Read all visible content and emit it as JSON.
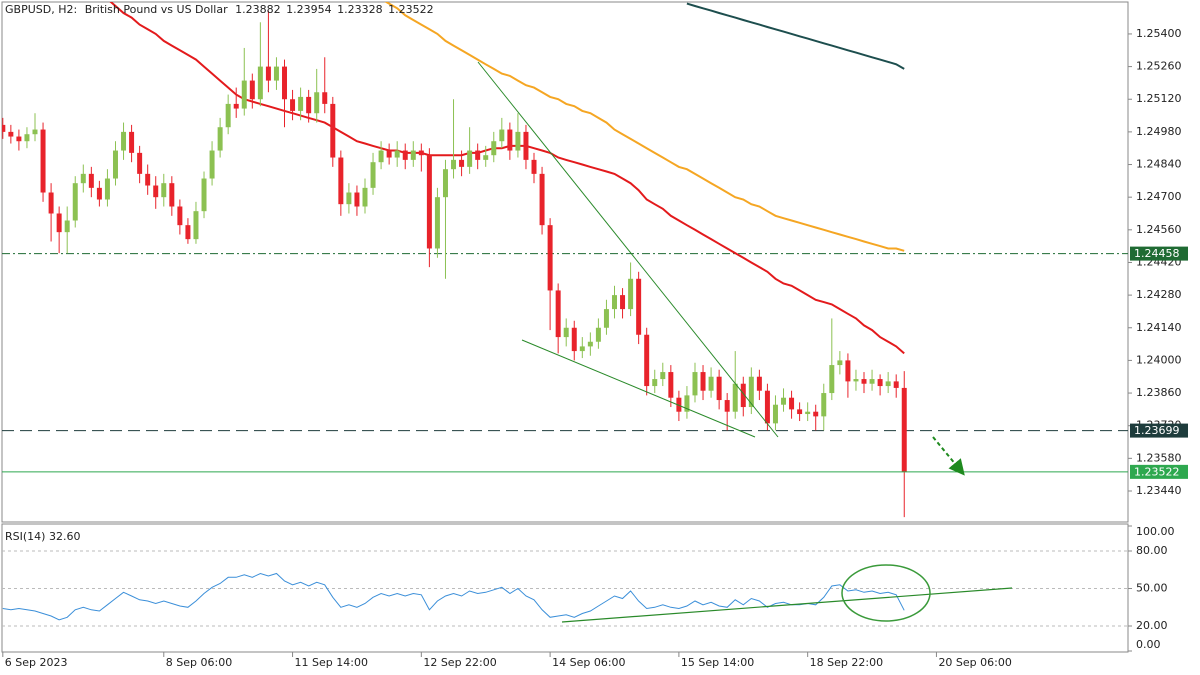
{
  "chart_data": {
    "type": "candlestick",
    "symbol": "GBPUSD, H2:",
    "description": "British Pound vs US Dollar",
    "xlim": [
      -0.1,
      139.8
    ],
    "xticks": [
      {
        "value": 0,
        "label": "6 Sep 2023"
      },
      {
        "value": 20,
        "label": "8 Sep 06:00"
      },
      {
        "value": 36,
        "label": "11 Sep 14:00"
      },
      {
        "value": 52,
        "label": "12 Sep 22:00"
      },
      {
        "value": 68,
        "label": "14 Sep 06:00"
      },
      {
        "value": 84,
        "label": "15 Sep 14:00"
      },
      {
        "value": 100,
        "label": "18 Sep 22:00"
      },
      {
        "value": 116,
        "label": "20 Sep 06:00"
      }
    ],
    "ylim": [
      1.23307,
      1.25537
    ],
    "yticks": [
      {
        "value": 1.254,
        "label": "1.25400"
      },
      {
        "value": 1.2526,
        "label": "1.25260"
      },
      {
        "value": 1.2512,
        "label": "1.25120"
      },
      {
        "value": 1.2498,
        "label": "1.24980"
      },
      {
        "value": 1.2484,
        "label": "1.24840"
      },
      {
        "value": 1.247,
        "label": "1.24700"
      },
      {
        "value": 1.2456,
        "label": "1.24560"
      },
      {
        "value": 1.2442,
        "label": "1.24420"
      },
      {
        "value": 1.2428,
        "label": "1.24280"
      },
      {
        "value": 1.2414,
        "label": "1.24140"
      },
      {
        "value": 1.24,
        "label": "1.24000"
      },
      {
        "value": 1.2386,
        "label": "1.23860"
      },
      {
        "value": 1.2372,
        "label": "1.23720"
      },
      {
        "value": 1.2358,
        "label": "1.23580"
      },
      {
        "value": 1.2344,
        "label": "1.23440"
      }
    ],
    "up_color": "#8cc152",
    "down_color": "#e8232b",
    "open": [
      1.2501,
      1.2498,
      1.2496,
      1.2494,
      1.2497,
      1.2499,
      1.2472,
      1.2463,
      1.2455,
      1.246,
      1.2476,
      1.248,
      1.2474,
      1.2469,
      1.2478,
      1.249,
      1.2498,
      1.2489,
      1.248,
      1.2475,
      1.247,
      1.2476,
      1.2466,
      1.2458,
      1.2452,
      1.2464,
      1.2478,
      1.249,
      1.25,
      1.251,
      1.2508,
      1.252,
      1.2512,
      1.2526,
      1.252,
      1.2526,
      1.2512,
      1.2507,
      1.2513,
      1.2506,
      1.2515,
      1.251,
      1.2487,
      1.2467,
      1.2472,
      1.2466,
      1.2474,
      1.2485,
      1.249,
      1.2487,
      1.249,
      1.2486,
      1.249,
      1.2488,
      1.2448,
      1.247,
      1.2482,
      1.2486,
      1.2483,
      1.249,
      1.2486,
      1.2488,
      1.2494,
      1.2499,
      1.249,
      1.2498,
      1.2486,
      1.248,
      1.2458,
      1.243,
      1.241,
      1.2414,
      1.2404,
      1.2406,
      1.2408,
      1.2414,
      1.2422,
      1.2428,
      1.2422,
      1.2435,
      1.2411,
      1.2389,
      1.2392,
      1.2395,
      1.2384,
      1.2378,
      1.2385,
      1.2395,
      1.2387,
      1.2393,
      1.2383,
      1.2378,
      1.239,
      1.238,
      1.2393,
      1.2387,
      1.2373,
      1.2381,
      1.2384,
      1.2379,
      1.2377,
      1.2378,
      1.2376,
      1.2386,
      1.2398,
      1.24,
      1.2391,
      1.2392,
      1.239,
      1.2392,
      1.2389,
      1.2391,
      1.23882
    ],
    "high": [
      1.2504,
      1.2501,
      1.2499,
      1.25,
      1.2506,
      1.2502,
      1.2476,
      1.2466,
      1.2466,
      1.2479,
      1.2484,
      1.2483,
      1.2477,
      1.2482,
      1.2494,
      1.2502,
      1.2501,
      1.2492,
      1.2484,
      1.2479,
      1.248,
      1.2479,
      1.2469,
      1.2461,
      1.2468,
      1.2481,
      1.2494,
      1.2504,
      1.2514,
      1.2517,
      1.2534,
      1.2523,
      1.2545,
      1.255,
      1.253,
      1.2529,
      1.2516,
      1.2517,
      1.2516,
      1.2525,
      1.253,
      1.2513,
      1.249,
      1.2476,
      1.2475,
      1.2478,
      1.2489,
      1.2494,
      1.2493,
      1.2494,
      1.2493,
      1.2494,
      1.2493,
      1.2491,
      1.2474,
      1.2486,
      1.2512,
      1.249,
      1.25,
      1.2493,
      1.2492,
      1.2498,
      1.2504,
      1.2502,
      1.2506,
      1.2501,
      1.2489,
      1.2483,
      1.2461,
      1.2433,
      1.2418,
      1.2417,
      1.241,
      1.2412,
      1.2418,
      1.2426,
      1.2432,
      1.2431,
      1.2442,
      1.2438,
      1.2414,
      1.2396,
      1.2399,
      1.2398,
      1.2387,
      1.2389,
      1.2399,
      1.2398,
      1.2397,
      1.2396,
      1.2386,
      1.2404,
      1.2393,
      1.2397,
      1.2396,
      1.239,
      1.2385,
      1.2388,
      1.2387,
      1.2382,
      1.2382,
      1.2381,
      1.239,
      1.2418,
      1.2404,
      1.2403,
      1.2396,
      1.2395,
      1.2396,
      1.2394,
      1.2395,
      1.2394,
      1.23954
    ],
    "low": [
      1.2495,
      1.2493,
      1.249,
      1.2491,
      1.2494,
      1.2468,
      1.2451,
      1.2446,
      1.2446,
      1.2457,
      1.2472,
      1.247,
      1.2466,
      1.2466,
      1.2475,
      1.2486,
      1.2485,
      1.2476,
      1.2471,
      1.2465,
      1.2466,
      1.2462,
      1.2454,
      1.245,
      1.245,
      1.2461,
      1.2475,
      1.2487,
      1.2497,
      1.2504,
      1.2505,
      1.2508,
      1.2509,
      1.2515,
      1.2516,
      1.25,
      1.2503,
      1.2503,
      1.2502,
      1.2502,
      1.2506,
      1.2483,
      1.2462,
      1.2463,
      1.2462,
      1.2463,
      1.2471,
      1.2482,
      1.2484,
      1.2483,
      1.2482,
      1.2483,
      1.2481,
      1.244,
      1.2444,
      1.2435,
      1.2478,
      1.2479,
      1.248,
      1.2482,
      1.2483,
      1.2485,
      1.2491,
      1.2486,
      1.2487,
      1.2482,
      1.2476,
      1.2454,
      1.2413,
      1.2403,
      1.2406,
      1.24,
      1.2401,
      1.2402,
      1.2405,
      1.2411,
      1.2418,
      1.2418,
      1.2419,
      1.2407,
      1.2385,
      1.2386,
      1.2389,
      1.238,
      1.2374,
      1.2375,
      1.2382,
      1.2383,
      1.2384,
      1.2379,
      1.237,
      1.2375,
      1.2376,
      1.2377,
      1.2383,
      1.237,
      1.237,
      1.2378,
      1.2375,
      1.2374,
      1.2374,
      1.237,
      1.237,
      1.2383,
      1.2394,
      1.2384,
      1.2387,
      1.2386,
      1.2387,
      1.2385,
      1.2386,
      1.2384,
      1.23328
    ],
    "close": [
      1.2498,
      1.2496,
      1.2494,
      1.2497,
      1.2499,
      1.2472,
      1.2463,
      1.2455,
      1.246,
      1.2476,
      1.248,
      1.2474,
      1.2469,
      1.2478,
      1.249,
      1.2498,
      1.2489,
      1.248,
      1.2475,
      1.247,
      1.2476,
      1.2466,
      1.2458,
      1.2452,
      1.2464,
      1.2478,
      1.249,
      1.25,
      1.251,
      1.2508,
      1.252,
      1.2512,
      1.2526,
      1.252,
      1.2526,
      1.2512,
      1.2507,
      1.2513,
      1.2506,
      1.2515,
      1.251,
      1.2487,
      1.2467,
      1.2472,
      1.2466,
      1.2474,
      1.2485,
      1.249,
      1.2487,
      1.249,
      1.2486,
      1.249,
      1.2488,
      1.2448,
      1.247,
      1.2482,
      1.2486,
      1.2483,
      1.249,
      1.2486,
      1.2488,
      1.2494,
      1.2499,
      1.249,
      1.2498,
      1.2486,
      1.248,
      1.2458,
      1.243,
      1.241,
      1.2414,
      1.2404,
      1.2406,
      1.2408,
      1.2414,
      1.2422,
      1.2428,
      1.2422,
      1.2435,
      1.2411,
      1.2389,
      1.2392,
      1.2395,
      1.2384,
      1.2378,
      1.2385,
      1.2395,
      1.2387,
      1.2393,
      1.2383,
      1.2378,
      1.239,
      1.238,
      1.2393,
      1.2387,
      1.2373,
      1.2381,
      1.2384,
      1.2379,
      1.2377,
      1.2378,
      1.2376,
      1.2386,
      1.2398,
      1.24,
      1.2391,
      1.2392,
      1.239,
      1.2392,
      1.2389,
      1.2391,
      1.23882,
      1.23522
    ],
    "moving_averages": [
      {
        "color": "#e31a1c",
        "values": [
          null,
          null,
          null,
          null,
          null,
          null,
          null,
          null,
          null,
          null,
          null,
          null,
          null,
          1.2555,
          1.2552,
          1.2549,
          1.2547,
          1.2544,
          1.2542,
          1.254,
          1.2537,
          1.2535,
          1.2533,
          1.2531,
          1.2529,
          1.2526,
          1.2523,
          1.252,
          1.2517,
          1.2514,
          1.2512,
          1.2511,
          1.251,
          1.2509,
          1.2508,
          1.2507,
          1.2506,
          1.2505,
          1.2504,
          1.2503,
          1.2502,
          1.25,
          1.2498,
          1.2496,
          1.2494,
          1.2493,
          1.2492,
          1.2491,
          1.249,
          1.249,
          1.2489,
          1.2489,
          1.2489,
          1.2488,
          1.2488,
          1.2488,
          1.2488,
          1.2488,
          1.2489,
          1.2489,
          1.249,
          1.2491,
          1.2491,
          1.2492,
          1.2492,
          1.2492,
          1.2491,
          1.249,
          1.2489,
          1.2487,
          1.2486,
          1.2485,
          1.2484,
          1.2483,
          1.2482,
          1.2481,
          1.248,
          1.2478,
          1.2476,
          1.2473,
          1.2469,
          1.2467,
          1.2465,
          1.2462,
          1.246,
          1.2458,
          1.2456,
          1.2454,
          1.2452,
          1.245,
          1.2448,
          1.2446,
          1.2444,
          1.2442,
          1.244,
          1.2438,
          1.2435,
          1.2433,
          1.2432,
          1.243,
          1.2428,
          1.2426,
          1.2425,
          1.2424,
          1.2422,
          1.242,
          1.2418,
          1.2415,
          1.2413,
          1.241,
          1.2408,
          1.2406,
          1.2403
        ]
      },
      {
        "color": "#f5a623",
        "values": [
          null,
          null,
          null,
          null,
          null,
          null,
          null,
          null,
          null,
          null,
          null,
          null,
          null,
          null,
          null,
          null,
          null,
          null,
          null,
          null,
          null,
          null,
          null,
          null,
          null,
          null,
          null,
          null,
          null,
          null,
          null,
          null,
          null,
          null,
          null,
          null,
          null,
          null,
          null,
          null,
          null,
          null,
          null,
          null,
          null,
          null,
          null,
          1.2555,
          1.2553,
          1.2551,
          1.2548,
          1.2546,
          1.2544,
          1.2542,
          1.254,
          1.2537,
          1.2535,
          1.2533,
          1.2531,
          1.2529,
          1.2527,
          1.2525,
          1.2523,
          1.2522,
          1.252,
          1.2518,
          1.2517,
          1.2515,
          1.2513,
          1.2512,
          1.251,
          1.2509,
          1.2507,
          1.2506,
          1.2504,
          1.2502,
          1.2499,
          1.2497,
          1.2495,
          1.2493,
          1.2491,
          1.2489,
          1.2487,
          1.2485,
          1.2483,
          1.2482,
          1.248,
          1.2478,
          1.2476,
          1.2474,
          1.2472,
          1.247,
          1.2469,
          1.2467,
          1.2466,
          1.2464,
          1.2462,
          1.2461,
          1.246,
          1.2459,
          1.2458,
          1.2457,
          1.2456,
          1.2455,
          1.2454,
          1.2453,
          1.2452,
          1.2451,
          1.245,
          1.2449,
          1.2448,
          1.2448,
          1.2447
        ]
      },
      {
        "color": "#1d4e4e",
        "values": [
          null,
          null,
          null,
          null,
          null,
          null,
          null,
          null,
          null,
          null,
          null,
          null,
          null,
          null,
          null,
          null,
          null,
          null,
          null,
          null,
          null,
          null,
          null,
          null,
          null,
          null,
          null,
          null,
          null,
          null,
          null,
          null,
          null,
          null,
          null,
          null,
          null,
          null,
          null,
          null,
          null,
          null,
          null,
          null,
          null,
          null,
          null,
          null,
          null,
          null,
          null,
          null,
          null,
          null,
          null,
          null,
          null,
          null,
          null,
          null,
          null,
          null,
          null,
          null,
          null,
          null,
          null,
          null,
          null,
          null,
          null,
          null,
          null,
          null,
          null,
          null,
          null,
          null,
          null,
          null,
          null,
          null,
          null,
          null,
          null,
          1.2553,
          1.2552,
          1.2551,
          1.255,
          1.2549,
          1.2548,
          1.2547,
          1.2546,
          1.2545,
          1.2544,
          1.2543,
          1.2542,
          1.2541,
          1.254,
          1.2539,
          1.2538,
          1.2537,
          1.2536,
          1.2535,
          1.2534,
          1.2533,
          1.2532,
          1.2531,
          1.253,
          1.2529,
          1.2528,
          1.2527,
          1.2525
        ]
      }
    ],
    "levels": [
      {
        "value": 1.24458,
        "style": "dash-dot",
        "color": "#1f6b33"
      },
      {
        "value": 1.23699,
        "style": "dashed",
        "color": "#1e3c3c"
      }
    ],
    "current_price_color": "#2ea84f",
    "indicator": {
      "type": "line",
      "title": "RSI(14) 32.60",
      "color": "#3b8fd9",
      "ylim": [
        0,
        100
      ],
      "yticks": [
        {
          "value": 100,
          "label": "100.00"
        },
        {
          "value": 80,
          "label": "80.00"
        },
        {
          "value": 50,
          "label": "50.00"
        },
        {
          "value": 20,
          "label": "20.00"
        },
        {
          "value": 0,
          "label": "0.00"
        }
      ],
      "values": [
        34,
        33,
        34,
        33,
        32,
        30,
        28,
        25,
        27,
        33,
        35,
        33,
        32,
        37,
        42,
        47,
        44,
        41,
        40,
        38,
        40,
        38,
        36,
        35,
        40,
        46,
        51,
        54,
        59,
        59,
        61,
        59,
        62,
        60,
        62,
        56,
        53,
        55,
        52,
        55,
        53,
        43,
        35,
        37,
        35,
        38,
        43,
        46,
        44,
        46,
        44,
        46,
        45,
        33,
        40,
        44,
        46,
        44,
        48,
        46,
        47,
        49,
        51,
        46,
        50,
        44,
        41,
        33,
        27,
        28,
        29,
        27,
        30,
        32,
        36,
        40,
        44,
        42,
        48,
        40,
        34,
        35,
        37,
        35,
        34,
        36,
        40,
        37,
        39,
        36,
        35,
        41,
        37,
        42,
        40,
        35,
        38,
        39,
        37,
        37,
        38,
        37,
        43,
        52,
        53,
        48,
        49,
        47,
        48,
        46,
        47,
        45,
        32.6
      ]
    }
  }
}
